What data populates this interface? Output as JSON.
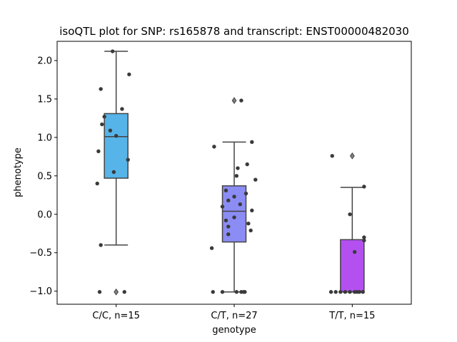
{
  "chart_data": {
    "type": "box",
    "title": "isoQTL plot for SNP: rs165878 and transcript: ENST00000482030",
    "xlabel": "genotype",
    "ylabel": "phenotype",
    "ylim": [
      -1.17,
      2.25
    ],
    "yticks": [
      -1.0,
      -0.5,
      0.0,
      0.5,
      1.0,
      1.5,
      2.0
    ],
    "ytick_labels": [
      "−1.0",
      "−0.5",
      "0.0",
      "0.5",
      "1.0",
      "1.5",
      "2.0"
    ],
    "categories": [
      "C/C, n=15",
      "C/T, n=27",
      "T/T, n=15"
    ],
    "colors": [
      "#56b4e9",
      "#8c8cf5",
      "#b450f0"
    ],
    "boxes": [
      {
        "q1": 0.47,
        "median": 1.01,
        "q3": 1.31,
        "whisker_low": -0.4,
        "whisker_high": 2.12,
        "fliers": [
          -1.01
        ]
      },
      {
        "q1": -0.36,
        "median": 0.04,
        "q3": 0.37,
        "whisker_low": -1.01,
        "whisker_high": 0.94,
        "fliers": [
          1.48
        ]
      },
      {
        "q1": -1.01,
        "median": -1.01,
        "q3": -0.33,
        "whisker_low": -1.01,
        "whisker_high": 0.35,
        "fliers": [
          0.76
        ]
      }
    ],
    "points": [
      [
        [
          -0.03,
          2.12
        ],
        [
          0.11,
          1.82
        ],
        [
          -0.13,
          1.63
        ],
        [
          0.05,
          1.37
        ],
        [
          -0.1,
          1.27
        ],
        [
          -0.12,
          1.17
        ],
        [
          -0.05,
          1.09
        ],
        [
          0.0,
          1.02
        ],
        [
          -0.15,
          0.82
        ],
        [
          0.1,
          0.71
        ],
        [
          -0.02,
          0.55
        ],
        [
          -0.16,
          0.4
        ],
        [
          -0.13,
          -0.4
        ],
        [
          -0.14,
          -1.01
        ],
        [
          0.07,
          -1.01
        ]
      ],
      [
        [
          0.06,
          1.48
        ],
        [
          0.15,
          0.94
        ],
        [
          -0.17,
          0.88
        ],
        [
          0.11,
          0.65
        ],
        [
          0.03,
          0.6
        ],
        [
          0.02,
          0.5
        ],
        [
          0.18,
          0.45
        ],
        [
          -0.07,
          0.31
        ],
        [
          0.1,
          0.27
        ],
        [
          0.0,
          0.23
        ],
        [
          -0.05,
          0.18
        ],
        [
          0.05,
          0.13
        ],
        [
          -0.1,
          0.1
        ],
        [
          0.15,
          0.05
        ],
        [
          0.0,
          -0.04
        ],
        [
          -0.07,
          -0.08
        ],
        [
          0.12,
          -0.12
        ],
        [
          -0.05,
          -0.16
        ],
        [
          0.14,
          -0.21
        ],
        [
          -0.05,
          -0.26
        ],
        [
          -0.19,
          -0.44
        ],
        [
          -0.18,
          -1.01
        ],
        [
          -0.1,
          -1.01
        ],
        [
          0.02,
          -1.01
        ],
        [
          0.06,
          -1.01
        ],
        [
          0.09,
          -1.01
        ],
        [
          0.08,
          -1.01
        ]
      ],
      [
        [
          -0.17,
          0.76
        ],
        [
          0.1,
          0.36
        ],
        [
          -0.02,
          0.0
        ],
        [
          0.1,
          -0.3
        ],
        [
          0.1,
          -0.34
        ],
        [
          0.02,
          -0.49
        ],
        [
          -0.18,
          -1.01
        ],
        [
          -0.14,
          -1.01
        ],
        [
          -0.1,
          -1.01
        ],
        [
          -0.06,
          -1.01
        ],
        [
          -0.02,
          -1.01
        ],
        [
          0.02,
          -1.01
        ],
        [
          0.06,
          -1.01
        ],
        [
          0.09,
          -1.01
        ],
        [
          0.04,
          -1.01
        ]
      ]
    ]
  }
}
